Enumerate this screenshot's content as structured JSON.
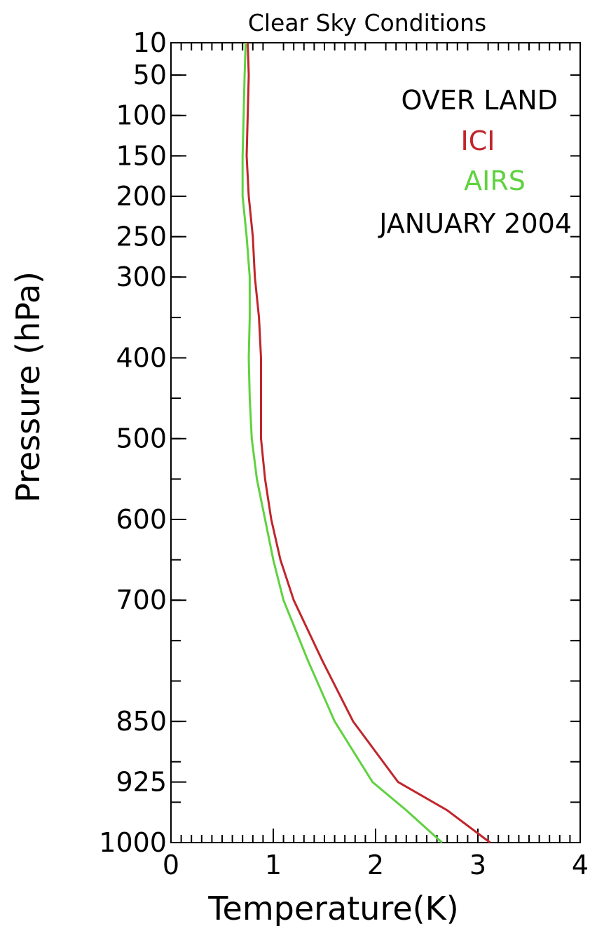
{
  "chart_data": {
    "type": "line",
    "title": "Clear Sky Conditions",
    "xlabel": "Temperature(K)",
    "ylabel": "Pressure (hPa)",
    "xlim": [
      0,
      4
    ],
    "ylim": [
      10,
      1000
    ],
    "y_axis_inverted": true,
    "x_ticks": [
      "0",
      "1",
      "2",
      "3",
      "4"
    ],
    "y_ticks": [
      "10",
      "50",
      "100",
      "150",
      "200",
      "250",
      "300",
      "400",
      "500",
      "600",
      "700",
      "850",
      "925",
      "1000"
    ],
    "annotations": [
      {
        "text": "OVER LAND",
        "color": "#000000"
      },
      {
        "text": "ICI",
        "color": "#c0262b"
      },
      {
        "text": "AIRS",
        "color": "#5fd23f"
      },
      {
        "text": "JANUARY 2004",
        "color": "#000000"
      }
    ],
    "grid": false,
    "series": [
      {
        "name": "ICI",
        "color": "#c0262b",
        "points": [
          [
            0.75,
            10
          ],
          [
            0.76,
            50
          ],
          [
            0.75,
            100
          ],
          [
            0.74,
            150
          ],
          [
            0.76,
            200
          ],
          [
            0.8,
            250
          ],
          [
            0.82,
            300
          ],
          [
            0.86,
            350
          ],
          [
            0.88,
            400
          ],
          [
            0.88,
            450
          ],
          [
            0.88,
            500
          ],
          [
            0.92,
            550
          ],
          [
            0.98,
            600
          ],
          [
            1.07,
            650
          ],
          [
            1.2,
            700
          ],
          [
            1.48,
            775
          ],
          [
            1.78,
            850
          ],
          [
            2.22,
            925
          ],
          [
            2.7,
            960
          ],
          [
            3.12,
            1000
          ]
        ]
      },
      {
        "name": "AIRS",
        "color": "#5fd23f",
        "points": [
          [
            0.73,
            10
          ],
          [
            0.72,
            50
          ],
          [
            0.71,
            100
          ],
          [
            0.7,
            150
          ],
          [
            0.7,
            200
          ],
          [
            0.74,
            250
          ],
          [
            0.77,
            300
          ],
          [
            0.77,
            350
          ],
          [
            0.76,
            400
          ],
          [
            0.77,
            450
          ],
          [
            0.79,
            500
          ],
          [
            0.84,
            550
          ],
          [
            0.92,
            600
          ],
          [
            1.0,
            650
          ],
          [
            1.1,
            700
          ],
          [
            1.34,
            775
          ],
          [
            1.6,
            850
          ],
          [
            1.97,
            925
          ],
          [
            2.3,
            960
          ],
          [
            2.65,
            1000
          ]
        ]
      }
    ]
  }
}
